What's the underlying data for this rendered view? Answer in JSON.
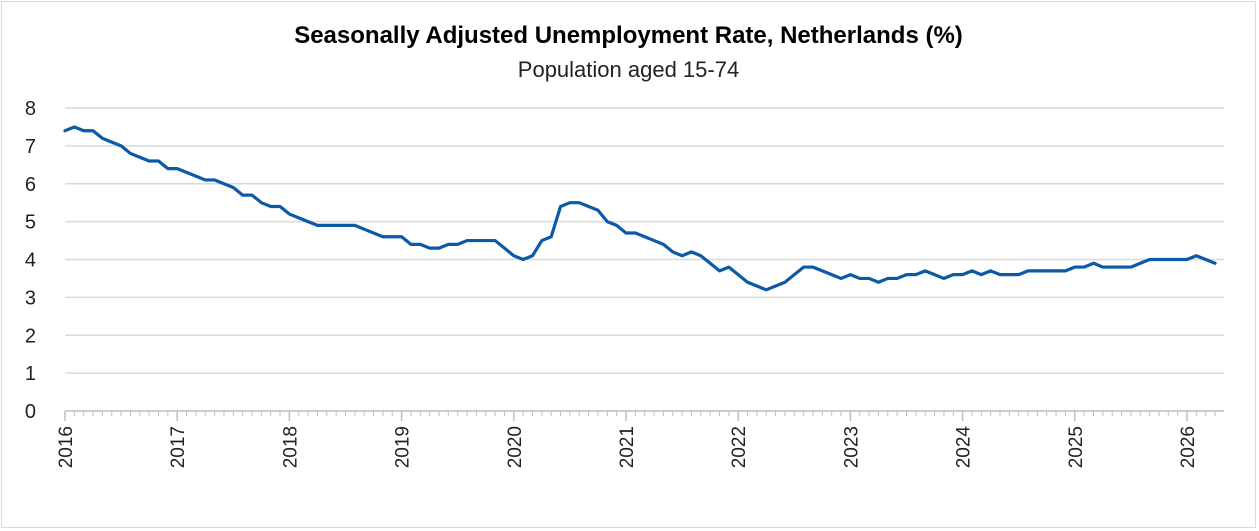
{
  "chart_data": {
    "type": "line",
    "title": "Seasonally Adjusted Unemployment Rate, Netherlands (%)",
    "subtitle": "Population aged 15-74",
    "xlabel": "",
    "ylabel": "",
    "ylim": [
      0,
      8
    ],
    "yticks": [
      "0",
      "1",
      "2",
      "3",
      "4",
      "5",
      "6",
      "7",
      "8"
    ],
    "xticks": [
      "2016",
      "2017",
      "2018",
      "2019",
      "2020",
      "2021",
      "2022",
      "2023",
      "2024",
      "2025",
      "2026"
    ],
    "xstart": "2016-01",
    "frequency": "monthly",
    "grid": true,
    "legend": "none",
    "line_color": "#0b5aa6",
    "series": [
      {
        "values": [
          7.4,
          7.5,
          7.4,
          7.4,
          7.2,
          7.1,
          7.0,
          6.8,
          6.7,
          6.6,
          6.6,
          6.4,
          6.4,
          6.3,
          6.2,
          6.1,
          6.1,
          6.0,
          5.9,
          5.7,
          5.7,
          5.5,
          5.4,
          5.4,
          5.2,
          5.1,
          5.0,
          4.9,
          4.9,
          4.9,
          4.9,
          4.9,
          4.8,
          4.7,
          4.6,
          4.6,
          4.6,
          4.4,
          4.4,
          4.3,
          4.3,
          4.4,
          4.4,
          4.5,
          4.5,
          4.5,
          4.5,
          4.3,
          4.1,
          4.0,
          4.1,
          4.5,
          4.6,
          5.4,
          5.5,
          5.5,
          5.4,
          5.3,
          5.0,
          4.9,
          4.7,
          4.7,
          4.6,
          4.5,
          4.4,
          4.2,
          4.1,
          4.2,
          4.1,
          3.9,
          3.7,
          3.8,
          3.6,
          3.4,
          3.3,
          3.2,
          3.3,
          3.4,
          3.6,
          3.8,
          3.8,
          3.7,
          3.6,
          3.5,
          3.6,
          3.5,
          3.5,
          3.4,
          3.5,
          3.5,
          3.6,
          3.6,
          3.7,
          3.6,
          3.5,
          3.6,
          3.6,
          3.7,
          3.6,
          3.7,
          3.6,
          3.6,
          3.6,
          3.7,
          3.7,
          3.7,
          3.7,
          3.7,
          3.8,
          3.8,
          3.9,
          3.8,
          3.8,
          3.8,
          3.8,
          3.9,
          4.0,
          4.0,
          4.0,
          4.0,
          4.0,
          4.1,
          4.0,
          3.9
        ]
      }
    ]
  }
}
